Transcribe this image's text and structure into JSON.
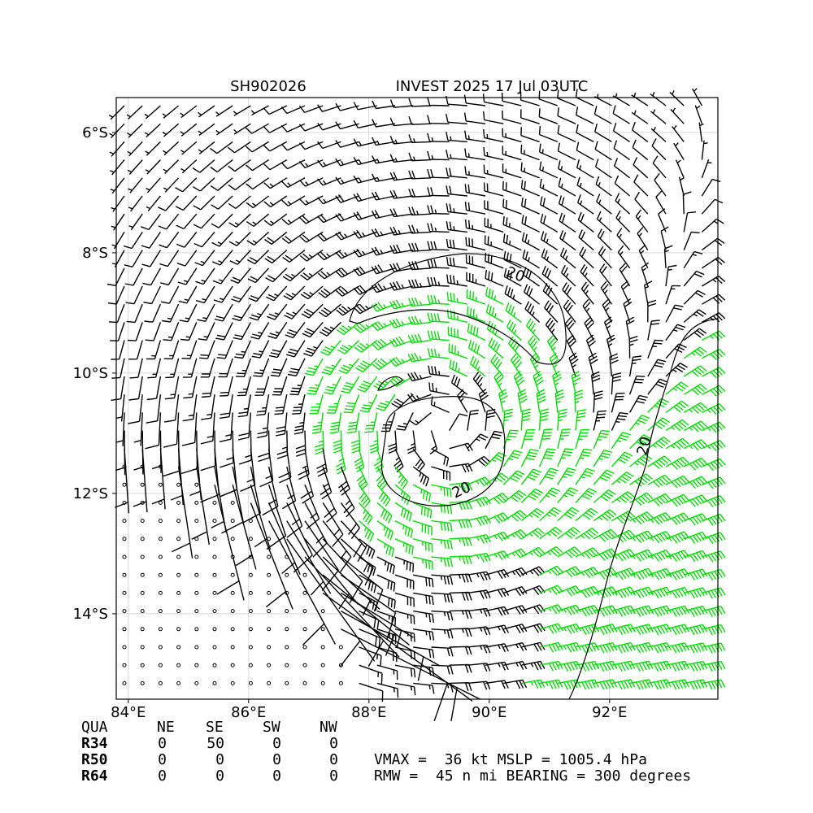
{
  "map": {
    "title_left": "SH902026",
    "title_right": "INVEST 2025 17 Jul 03UTC",
    "xlim": [
      83.8,
      93.8
    ],
    "ylim": [
      -15.42,
      -5.42
    ],
    "xticks": [
      {
        "value": 84,
        "label": "84°E"
      },
      {
        "value": 86,
        "label": "86°E"
      },
      {
        "value": 88,
        "label": "88°E"
      },
      {
        "value": 90,
        "label": "90°E"
      },
      {
        "value": 92,
        "label": "92°E"
      }
    ],
    "yticks": [
      {
        "value": -6,
        "label": "6°S"
      },
      {
        "value": -8,
        "label": "8°S"
      },
      {
        "value": -10,
        "label": "10°S"
      },
      {
        "value": -12,
        "label": "12°S"
      },
      {
        "value": -14,
        "label": "14°S"
      }
    ],
    "grid": true,
    "contour_labels": [
      20,
      20,
      20
    ]
  },
  "table": {
    "header": [
      "QUA",
      "NE",
      "SE",
      "SW",
      "NW"
    ],
    "rows": [
      [
        "R34",
        0,
        50,
        0,
        0
      ],
      [
        "R50",
        0,
        0,
        0,
        0
      ],
      [
        "R64",
        0,
        0,
        0,
        0
      ]
    ]
  },
  "stats": [
    "VMAX =  36 kt MSLP = 1005.4 hPa",
    "RMW =  45 n mi BEARING = 300 degrees"
  ]
}
